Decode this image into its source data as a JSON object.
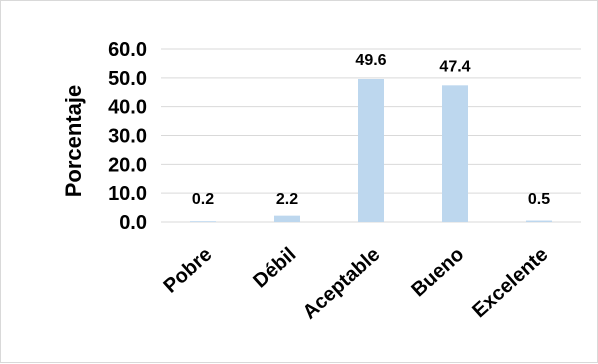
{
  "chart_data": {
    "type": "bar",
    "title": "",
    "xlabel": "",
    "ylabel": "Porcentaje",
    "categories": [
      "Pobre",
      "Débil",
      "Aceptable",
      "Bueno",
      "Excelente"
    ],
    "values": [
      0.2,
      2.2,
      49.6,
      47.4,
      0.5
    ],
    "data_labels": [
      "0.2",
      "2.2",
      "49.6",
      "47.4",
      "0.5"
    ],
    "ylim": [
      0,
      60
    ],
    "yticks": [
      "0.0",
      "10.0",
      "20.0",
      "30.0",
      "40.0",
      "50.0",
      "60.0"
    ],
    "grid": "horizontal",
    "legend": "none",
    "bar_color": "#bdd7ee",
    "grid_color": "#d9d9d9"
  }
}
